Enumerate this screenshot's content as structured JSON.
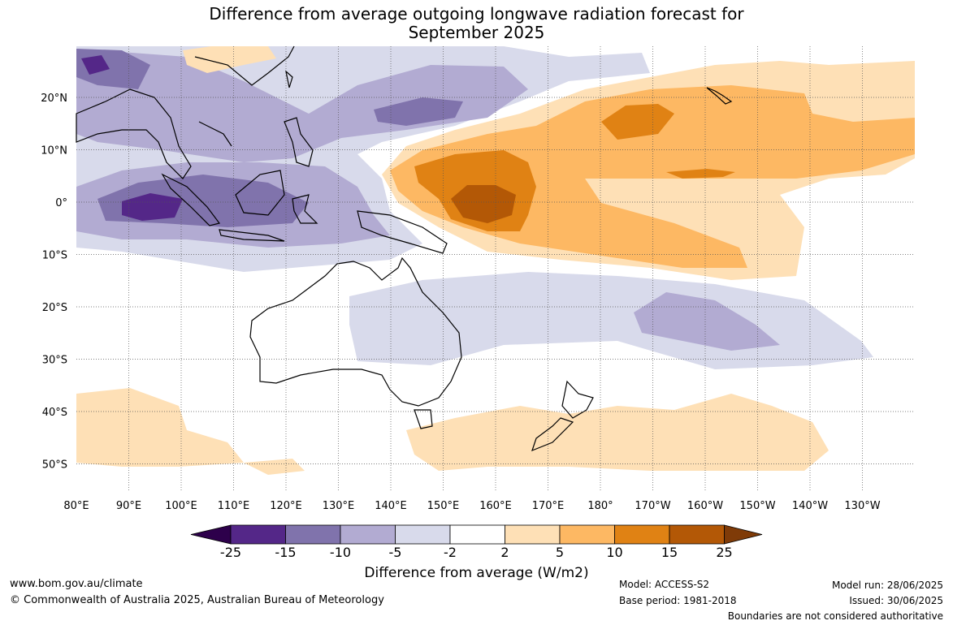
{
  "title": {
    "line1": "Difference from average outgoing longwave radiation forecast for",
    "line2": "September 2025"
  },
  "map": {
    "region": "Indo-Pacific",
    "lon_ticks": [
      "80°E",
      "90°E",
      "100°E",
      "110°E",
      "120°E",
      "130°E",
      "140°E",
      "150°E",
      "160°E",
      "170°E",
      "180°",
      "170°W",
      "160°W",
      "150°W",
      "140°W",
      "130°W"
    ],
    "lat_ticks": [
      "20°N",
      "10°N",
      "0°",
      "10°S",
      "20°S",
      "30°S",
      "40°S",
      "50°S"
    ],
    "land_outline_color": "#000000",
    "gridline_style": "dotted"
  },
  "legend": {
    "bounds": [
      "-25",
      "-15",
      "-10",
      "-5",
      "-2",
      "2",
      "5",
      "10",
      "15",
      "25"
    ],
    "colors": [
      "#2d004b",
      "#542788",
      "#8073ac",
      "#b2abd2",
      "#d8daeb",
      "#ffffff",
      "#fee0b6",
      "#fdb863",
      "#e08214",
      "#b35806",
      "#7f3b08"
    ],
    "title": "Difference from average (W/m2)"
  },
  "footer": {
    "url": "www.bom.gov.au/climate",
    "copyright": "© Commonwealth of Australia 2025, Australian Bureau of Meteorology",
    "model": "Model: ACCESS-S2",
    "base_period": "Base period: 1981-2018",
    "model_run": "Model run: 28/06/2025",
    "issued": "Issued: 30/06/2025",
    "disclaimer": "Boundaries are not considered authoritative"
  }
}
